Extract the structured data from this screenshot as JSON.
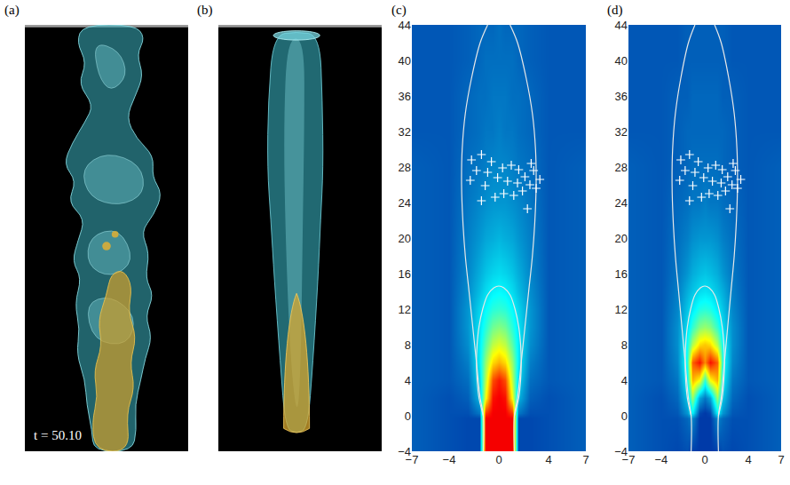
{
  "chart_data": [
    {
      "type": "image",
      "panel": "(a)",
      "annotations": [
        "t = 50.10"
      ]
    },
    {
      "type": "image",
      "panel": "(b)"
    },
    {
      "type": "heatmap",
      "panel": "(c)",
      "color": "Jet",
      "x": [
        -7,
        -4,
        -2.5,
        -1.6,
        -1.1,
        -0.5,
        0,
        0.5,
        1.1,
        1.6,
        2.5,
        4,
        7
      ],
      "y": [
        -4,
        -0.3,
        0.3,
        2,
        4,
        6,
        8,
        10,
        12,
        14,
        16,
        20,
        24,
        28,
        32,
        36,
        40,
        44
      ],
      "z": [
        [
          0.17,
          0.15,
          0.14,
          0.14,
          0.88,
          0.88,
          0.88,
          0.88,
          0.88,
          0.14,
          0.14,
          0.15,
          0.17
        ],
        [
          0.17,
          0.15,
          0.14,
          0.14,
          0.88,
          0.88,
          0.88,
          0.88,
          0.88,
          0.14,
          0.14,
          0.15,
          0.17
        ],
        [
          0.17,
          0.15,
          0.15,
          0.2,
          0.82,
          0.88,
          0.88,
          0.88,
          0.82,
          0.2,
          0.15,
          0.15,
          0.17
        ],
        [
          0.17,
          0.15,
          0.17,
          0.28,
          0.62,
          0.86,
          0.88,
          0.86,
          0.62,
          0.28,
          0.17,
          0.15,
          0.17
        ],
        [
          0.17,
          0.16,
          0.19,
          0.32,
          0.56,
          0.8,
          0.85,
          0.8,
          0.56,
          0.32,
          0.19,
          0.16,
          0.17
        ],
        [
          0.17,
          0.16,
          0.21,
          0.35,
          0.52,
          0.66,
          0.7,
          0.66,
          0.52,
          0.35,
          0.21,
          0.16,
          0.17
        ],
        [
          0.17,
          0.16,
          0.23,
          0.35,
          0.46,
          0.56,
          0.59,
          0.56,
          0.46,
          0.35,
          0.23,
          0.16,
          0.17
        ],
        [
          0.17,
          0.16,
          0.24,
          0.34,
          0.41,
          0.48,
          0.5,
          0.48,
          0.41,
          0.34,
          0.24,
          0.16,
          0.17
        ],
        [
          0.17,
          0.16,
          0.24,
          0.32,
          0.37,
          0.41,
          0.42,
          0.41,
          0.37,
          0.32,
          0.24,
          0.16,
          0.17
        ],
        [
          0.17,
          0.16,
          0.23,
          0.29,
          0.33,
          0.36,
          0.37,
          0.36,
          0.33,
          0.29,
          0.23,
          0.16,
          0.17
        ],
        [
          0.17,
          0.16,
          0.22,
          0.27,
          0.3,
          0.32,
          0.33,
          0.32,
          0.3,
          0.27,
          0.22,
          0.16,
          0.17
        ],
        [
          0.17,
          0.16,
          0.21,
          0.24,
          0.26,
          0.27,
          0.28,
          0.27,
          0.26,
          0.24,
          0.21,
          0.16,
          0.17
        ],
        [
          0.17,
          0.16,
          0.2,
          0.22,
          0.23,
          0.24,
          0.24,
          0.24,
          0.23,
          0.22,
          0.2,
          0.16,
          0.17
        ],
        [
          0.17,
          0.16,
          0.19,
          0.2,
          0.21,
          0.22,
          0.22,
          0.22,
          0.21,
          0.2,
          0.19,
          0.16,
          0.17
        ],
        [
          0.16,
          0.16,
          0.18,
          0.19,
          0.2,
          0.2,
          0.21,
          0.2,
          0.2,
          0.19,
          0.18,
          0.16,
          0.16
        ],
        [
          0.16,
          0.16,
          0.18,
          0.19,
          0.19,
          0.2,
          0.2,
          0.2,
          0.19,
          0.19,
          0.18,
          0.16,
          0.16
        ],
        [
          0.16,
          0.16,
          0.17,
          0.18,
          0.19,
          0.19,
          0.19,
          0.19,
          0.19,
          0.18,
          0.17,
          0.16,
          0.16
        ],
        [
          0.16,
          0.16,
          0.17,
          0.18,
          0.18,
          0.18,
          0.19,
          0.18,
          0.18,
          0.18,
          0.17,
          0.16,
          0.16
        ]
      ],
      "zlim": [
        0,
        1
      ],
      "xlim": [
        -7,
        7
      ],
      "ylim": [
        -4,
        44
      ],
      "xticks": [
        -7,
        -4,
        0,
        4,
        7
      ],
      "yticks": [
        -4,
        0,
        4,
        8,
        12,
        16,
        20,
        24,
        28,
        32,
        36,
        40,
        44
      ],
      "series": [
        {
          "type": "line",
          "color": "#e8e8e8",
          "x": [
            -1.25,
            -1.25,
            -1.5,
            -1.8,
            -2.1,
            -2.4,
            -2.7,
            -2.9,
            -3.0,
            -2.95,
            -2.7,
            -2.2,
            -1.5,
            -0.9,
            null,
            0.9,
            1.5,
            2.2,
            2.7,
            2.95,
            3.0,
            2.9,
            2.7,
            2.4,
            2.1,
            1.8,
            1.5,
            1.25,
            1.25
          ],
          "y": [
            -4,
            0,
            2,
            6,
            10,
            14,
            18,
            22,
            26,
            30,
            34,
            38,
            42,
            44,
            null,
            44,
            42,
            38,
            34,
            30,
            26,
            22,
            18,
            14,
            10,
            6,
            2,
            0,
            -4
          ]
        },
        {
          "type": "line",
          "color": "#e8e8e8",
          "x": [
            -1.25,
            -1.6,
            -1.75,
            -1.8,
            -1.75,
            -1.6,
            -1.3,
            -0.9,
            -0.4,
            0,
            0.4,
            0.9,
            1.3,
            1.6,
            1.75,
            1.8,
            1.75,
            1.6,
            1.25
          ],
          "y": [
            0,
            2,
            4,
            6,
            8,
            10,
            12,
            13.6,
            14.4,
            14.6,
            14.4,
            13.6,
            12,
            10,
            8,
            6,
            4,
            2,
            0
          ]
        },
        {
          "type": "scatter",
          "marker": "cross",
          "color": "#ffffff",
          "x": [
            -2.2,
            -1.4,
            -0.6,
            -1.8,
            -0.9,
            0.3,
            1.0,
            1.6,
            2.1,
            2.8,
            2.5,
            3.0,
            1.9,
            1.2,
            0.4,
            -0.3,
            -1.1,
            -2.3,
            -1.4,
            0.7,
            2.3,
            -0.1,
            1.5,
            2.6,
            3.3
          ],
          "y": [
            28.8,
            29.4,
            28.6,
            27.6,
            27.4,
            27.9,
            28.2,
            27.7,
            26.9,
            27.6,
            26.0,
            25.6,
            25.3,
            24.8,
            25.0,
            24.6,
            25.9,
            26.5,
            24.2,
            26.4,
            23.3,
            26.8,
            26.2,
            28.4,
            26.6
          ]
        }
      ]
    },
    {
      "type": "heatmap",
      "panel": "(d)",
      "color": "Jet",
      "x": [
        -7,
        -4,
        -2.5,
        -1.6,
        -1.1,
        -0.5,
        0,
        0.5,
        1.1,
        1.6,
        2.5,
        4,
        7
      ],
      "y": [
        -4,
        -0.3,
        0.3,
        2,
        4,
        6,
        8,
        10,
        12,
        14,
        16,
        20,
        24,
        28,
        32,
        36,
        40,
        44
      ],
      "z": [
        [
          0.17,
          0.15,
          0.14,
          0.15,
          0.13,
          0.12,
          0.12,
          0.12,
          0.13,
          0.15,
          0.14,
          0.15,
          0.17
        ],
        [
          0.17,
          0.15,
          0.15,
          0.18,
          0.22,
          0.12,
          0.12,
          0.12,
          0.22,
          0.18,
          0.15,
          0.15,
          0.17
        ],
        [
          0.17,
          0.15,
          0.16,
          0.24,
          0.36,
          0.14,
          0.12,
          0.14,
          0.36,
          0.24,
          0.16,
          0.15,
          0.17
        ],
        [
          0.17,
          0.15,
          0.18,
          0.3,
          0.52,
          0.26,
          0.2,
          0.26,
          0.52,
          0.3,
          0.18,
          0.15,
          0.17
        ],
        [
          0.17,
          0.16,
          0.2,
          0.36,
          0.7,
          0.62,
          0.42,
          0.62,
          0.7,
          0.36,
          0.2,
          0.16,
          0.17
        ],
        [
          0.17,
          0.16,
          0.22,
          0.4,
          0.78,
          0.86,
          0.74,
          0.86,
          0.78,
          0.4,
          0.22,
          0.16,
          0.17
        ],
        [
          0.17,
          0.16,
          0.23,
          0.38,
          0.55,
          0.66,
          0.68,
          0.66,
          0.55,
          0.38,
          0.23,
          0.16,
          0.17
        ],
        [
          0.17,
          0.16,
          0.23,
          0.33,
          0.42,
          0.5,
          0.52,
          0.5,
          0.42,
          0.33,
          0.23,
          0.16,
          0.17
        ],
        [
          0.17,
          0.16,
          0.22,
          0.3,
          0.35,
          0.4,
          0.41,
          0.4,
          0.35,
          0.3,
          0.22,
          0.16,
          0.17
        ],
        [
          0.17,
          0.16,
          0.21,
          0.27,
          0.3,
          0.33,
          0.34,
          0.33,
          0.3,
          0.27,
          0.21,
          0.16,
          0.17
        ],
        [
          0.17,
          0.16,
          0.2,
          0.24,
          0.27,
          0.29,
          0.3,
          0.29,
          0.27,
          0.24,
          0.2,
          0.16,
          0.17
        ],
        [
          0.17,
          0.16,
          0.19,
          0.21,
          0.23,
          0.24,
          0.24,
          0.24,
          0.23,
          0.21,
          0.19,
          0.16,
          0.17
        ],
        [
          0.17,
          0.16,
          0.18,
          0.19,
          0.2,
          0.2,
          0.21,
          0.2,
          0.2,
          0.19,
          0.18,
          0.16,
          0.17
        ],
        [
          0.17,
          0.16,
          0.17,
          0.18,
          0.19,
          0.19,
          0.19,
          0.19,
          0.19,
          0.18,
          0.17,
          0.16,
          0.17
        ],
        [
          0.16,
          0.16,
          0.17,
          0.18,
          0.18,
          0.18,
          0.18,
          0.18,
          0.18,
          0.18,
          0.17,
          0.16,
          0.16
        ],
        [
          0.16,
          0.16,
          0.17,
          0.17,
          0.18,
          0.18,
          0.18,
          0.18,
          0.18,
          0.17,
          0.17,
          0.16,
          0.16
        ],
        [
          0.16,
          0.16,
          0.16,
          0.17,
          0.17,
          0.17,
          0.17,
          0.17,
          0.17,
          0.17,
          0.16,
          0.16,
          0.16
        ],
        [
          0.16,
          0.16,
          0.16,
          0.17,
          0.17,
          0.17,
          0.17,
          0.17,
          0.17,
          0.17,
          0.16,
          0.16,
          0.16
        ]
      ],
      "zlim": [
        0,
        1
      ],
      "xlim": [
        -7,
        7
      ],
      "ylim": [
        -4,
        44
      ],
      "xticks": [
        -7,
        -4,
        0,
        4,
        7
      ],
      "yticks": [
        -4,
        0,
        4,
        8,
        12,
        16,
        20,
        24,
        28,
        32,
        36,
        40,
        44
      ],
      "series": [
        {
          "type": "line",
          "color": "#e8e8e8",
          "x": [
            -1.25,
            -1.25,
            -1.5,
            -1.8,
            -2.1,
            -2.4,
            -2.7,
            -2.9,
            -3.0,
            -2.95,
            -2.7,
            -2.2,
            -1.5,
            -0.9,
            null,
            0.9,
            1.5,
            2.2,
            2.7,
            2.95,
            3.0,
            2.9,
            2.7,
            2.4,
            2.1,
            1.8,
            1.5,
            1.25,
            1.25
          ],
          "y": [
            -4,
            0,
            2,
            6,
            10,
            14,
            18,
            22,
            26,
            30,
            34,
            38,
            42,
            44,
            null,
            44,
            42,
            38,
            34,
            30,
            26,
            22,
            18,
            14,
            10,
            6,
            2,
            0,
            -4
          ]
        },
        {
          "type": "line",
          "color": "#e8e8e8",
          "x": [
            -1.25,
            -1.6,
            -1.75,
            -1.8,
            -1.75,
            -1.6,
            -1.3,
            -0.9,
            -0.4,
            0,
            0.4,
            0.9,
            1.3,
            1.6,
            1.75,
            1.8,
            1.75,
            1.6,
            1.25
          ],
          "y": [
            0,
            2,
            4,
            6,
            8,
            10,
            12,
            13.6,
            14.4,
            14.6,
            14.4,
            13.6,
            12,
            10,
            8,
            6,
            4,
            2,
            0
          ]
        },
        {
          "type": "scatter",
          "marker": "cross",
          "color": "#ffffff",
          "x": [
            -2.2,
            -1.4,
            -0.6,
            -1.8,
            -0.9,
            0.3,
            1.0,
            1.6,
            2.1,
            2.8,
            2.5,
            3.0,
            1.9,
            1.2,
            0.4,
            -0.3,
            -1.1,
            -2.3,
            -1.4,
            0.7,
            2.3,
            -0.1,
            1.5,
            2.6,
            3.3
          ],
          "y": [
            28.8,
            29.4,
            28.6,
            27.6,
            27.4,
            27.9,
            28.2,
            27.7,
            26.9,
            27.6,
            26.0,
            25.6,
            25.3,
            24.8,
            25.0,
            24.6,
            25.9,
            26.5,
            24.2,
            26.4,
            23.3,
            26.8,
            26.2,
            28.4,
            26.6
          ]
        }
      ]
    }
  ]
}
